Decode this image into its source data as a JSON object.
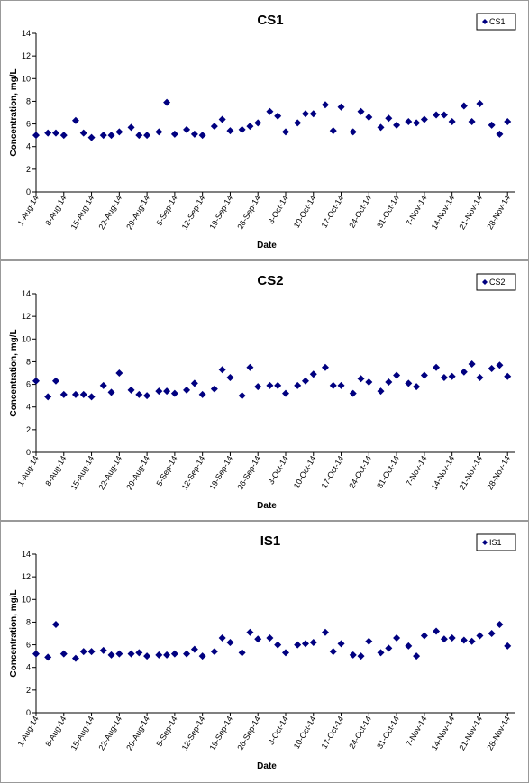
{
  "chart_data": [
    {
      "type": "scatter",
      "title": "CS1",
      "x_label": "Date",
      "y_label": "Concentration, mg/L",
      "legend": "upper right",
      "x": [
        "2014-08-01",
        "2014-08-04",
        "2014-08-06",
        "2014-08-08",
        "2014-08-11",
        "2014-08-13",
        "2014-08-15",
        "2014-08-18",
        "2014-08-20",
        "2014-08-22",
        "2014-08-25",
        "2014-08-27",
        "2014-08-29",
        "2014-09-01",
        "2014-09-03",
        "2014-09-05",
        "2014-09-08",
        "2014-09-10",
        "2014-09-12",
        "2014-09-15",
        "2014-09-17",
        "2014-09-19",
        "2014-09-22",
        "2014-09-24",
        "2014-09-26",
        "2014-09-29",
        "2014-10-01",
        "2014-10-03",
        "2014-10-06",
        "2014-10-08",
        "2014-10-10",
        "2014-10-13",
        "2014-10-15",
        "2014-10-17",
        "2014-10-20",
        "2014-10-22",
        "2014-10-24",
        "2014-10-27",
        "2014-10-29",
        "2014-10-31",
        "2014-11-03",
        "2014-11-05",
        "2014-11-07",
        "2014-11-10",
        "2014-11-12",
        "2014-11-14",
        "2014-11-17",
        "2014-11-19",
        "2014-11-21",
        "2014-11-24",
        "2014-11-26",
        "2014-11-28"
      ],
      "series": [
        {
          "name": "CS1",
          "color": "#000080",
          "values": [
            5.0,
            5.2,
            5.2,
            5.0,
            6.3,
            5.2,
            4.8,
            5.0,
            5.0,
            5.3,
            5.7,
            5.0,
            5.0,
            5.3,
            7.9,
            5.1,
            5.5,
            5.1,
            5.0,
            5.8,
            6.4,
            5.4,
            5.5,
            5.8,
            6.1,
            7.1,
            6.7,
            5.3,
            6.1,
            6.9,
            6.9,
            7.7,
            5.4,
            7.5,
            5.3,
            7.1,
            6.6,
            5.7,
            6.5,
            5.9,
            6.2,
            6.1,
            6.4,
            6.8,
            6.8,
            6.2,
            7.6,
            6.2,
            7.8,
            5.9,
            5.1,
            6.2
          ]
        }
      ],
      "xlim": [
        "2014-08-01",
        "2014-11-30"
      ],
      "xticks": [
        {
          "value": "2014-08-01",
          "label": "1-Aug-14"
        },
        {
          "value": "2014-08-08",
          "label": "8-Aug-14"
        },
        {
          "value": "2014-08-15",
          "label": "15-Aug-14"
        },
        {
          "value": "2014-08-22",
          "label": "22-Aug-14"
        },
        {
          "value": "2014-08-29",
          "label": "29-Aug-14"
        },
        {
          "value": "2014-09-05",
          "label": "5-Sep-14"
        },
        {
          "value": "2014-09-12",
          "label": "12-Sep-14"
        },
        {
          "value": "2014-09-19",
          "label": "19-Sep-14"
        },
        {
          "value": "2014-09-26",
          "label": "26-Sep-14"
        },
        {
          "value": "2014-10-03",
          "label": "3-Oct-14"
        },
        {
          "value": "2014-10-10",
          "label": "10-Oct-14"
        },
        {
          "value": "2014-10-17",
          "label": "17-Oct-14"
        },
        {
          "value": "2014-10-24",
          "label": "24-Oct-14"
        },
        {
          "value": "2014-10-31",
          "label": "31-Oct-14"
        },
        {
          "value": "2014-11-07",
          "label": "7-Nov-14"
        },
        {
          "value": "2014-11-14",
          "label": "14-Nov-14"
        },
        {
          "value": "2014-11-21",
          "label": "21-Nov-14"
        },
        {
          "value": "2014-11-28",
          "label": "28-Nov-14"
        }
      ],
      "ylim": [
        0,
        14
      ],
      "yticks": [
        0,
        2,
        4,
        6,
        8,
        10,
        12,
        14
      ],
      "grid": false
    },
    {
      "type": "scatter",
      "title": "CS2",
      "x_label": "Date",
      "y_label": "Concentration, mg/L",
      "legend": "upper right",
      "x": [
        "2014-08-01",
        "2014-08-04",
        "2014-08-06",
        "2014-08-08",
        "2014-08-11",
        "2014-08-13",
        "2014-08-15",
        "2014-08-18",
        "2014-08-20",
        "2014-08-22",
        "2014-08-25",
        "2014-08-27",
        "2014-08-29",
        "2014-09-01",
        "2014-09-03",
        "2014-09-05",
        "2014-09-08",
        "2014-09-10",
        "2014-09-12",
        "2014-09-15",
        "2014-09-17",
        "2014-09-19",
        "2014-09-22",
        "2014-09-24",
        "2014-09-26",
        "2014-09-29",
        "2014-10-01",
        "2014-10-03",
        "2014-10-06",
        "2014-10-08",
        "2014-10-10",
        "2014-10-13",
        "2014-10-15",
        "2014-10-17",
        "2014-10-20",
        "2014-10-22",
        "2014-10-24",
        "2014-10-27",
        "2014-10-29",
        "2014-10-31",
        "2014-11-03",
        "2014-11-05",
        "2014-11-07",
        "2014-11-10",
        "2014-11-12",
        "2014-11-14",
        "2014-11-17",
        "2014-11-19",
        "2014-11-21",
        "2014-11-24",
        "2014-11-26",
        "2014-11-28"
      ],
      "series": [
        {
          "name": "CS2",
          "color": "#000080",
          "values": [
            6.3,
            4.9,
            6.3,
            5.1,
            5.1,
            5.1,
            4.9,
            5.9,
            5.3,
            7.0,
            5.5,
            5.1,
            5.0,
            5.4,
            5.4,
            5.2,
            5.5,
            6.1,
            5.1,
            5.6,
            7.3,
            6.6,
            5.0,
            7.5,
            5.8,
            5.9,
            5.9,
            5.2,
            5.9,
            6.3,
            6.9,
            7.5,
            5.9,
            5.9,
            5.2,
            6.5,
            6.2,
            5.4,
            6.2,
            6.8,
            6.1,
            5.8,
            6.8,
            7.5,
            6.6,
            6.7,
            7.1,
            7.8,
            6.6,
            7.4,
            7.7,
            6.7
          ]
        }
      ],
      "xlim": [
        "2014-08-01",
        "2014-11-30"
      ],
      "xticks": [
        {
          "value": "2014-08-01",
          "label": "1-Aug-14"
        },
        {
          "value": "2014-08-08",
          "label": "8-Aug-14"
        },
        {
          "value": "2014-08-15",
          "label": "15-Aug-14"
        },
        {
          "value": "2014-08-22",
          "label": "22-Aug-14"
        },
        {
          "value": "2014-08-29",
          "label": "29-Aug-14"
        },
        {
          "value": "2014-09-05",
          "label": "5-Sep-14"
        },
        {
          "value": "2014-09-12",
          "label": "12-Sep-14"
        },
        {
          "value": "2014-09-19",
          "label": "19-Sep-14"
        },
        {
          "value": "2014-09-26",
          "label": "26-Sep-14"
        },
        {
          "value": "2014-10-03",
          "label": "3-Oct-14"
        },
        {
          "value": "2014-10-10",
          "label": "10-Oct-14"
        },
        {
          "value": "2014-10-17",
          "label": "17-Oct-14"
        },
        {
          "value": "2014-10-24",
          "label": "24-Oct-14"
        },
        {
          "value": "2014-10-31",
          "label": "31-Oct-14"
        },
        {
          "value": "2014-11-07",
          "label": "7-Nov-14"
        },
        {
          "value": "2014-11-14",
          "label": "14-Nov-14"
        },
        {
          "value": "2014-11-21",
          "label": "21-Nov-14"
        },
        {
          "value": "2014-11-28",
          "label": "28-Nov-14"
        }
      ],
      "ylim": [
        0,
        14
      ],
      "yticks": [
        0,
        2,
        4,
        6,
        8,
        10,
        12,
        14
      ],
      "grid": false
    },
    {
      "type": "scatter",
      "title": "IS1",
      "x_label": "Date",
      "y_label": "Concentration, mg/L",
      "legend": "upper right",
      "x": [
        "2014-08-01",
        "2014-08-04",
        "2014-08-06",
        "2014-08-08",
        "2014-08-11",
        "2014-08-13",
        "2014-08-15",
        "2014-08-18",
        "2014-08-20",
        "2014-08-22",
        "2014-08-25",
        "2014-08-27",
        "2014-08-29",
        "2014-09-01",
        "2014-09-03",
        "2014-09-05",
        "2014-09-08",
        "2014-09-10",
        "2014-09-12",
        "2014-09-15",
        "2014-09-17",
        "2014-09-19",
        "2014-09-22",
        "2014-09-24",
        "2014-09-26",
        "2014-09-29",
        "2014-10-01",
        "2014-10-03",
        "2014-10-06",
        "2014-10-08",
        "2014-10-10",
        "2014-10-13",
        "2014-10-15",
        "2014-10-17",
        "2014-10-20",
        "2014-10-22",
        "2014-10-24",
        "2014-10-27",
        "2014-10-29",
        "2014-10-31",
        "2014-11-03",
        "2014-11-05",
        "2014-11-07",
        "2014-11-10",
        "2014-11-12",
        "2014-11-14",
        "2014-11-17",
        "2014-11-19",
        "2014-11-21",
        "2014-11-24",
        "2014-11-26",
        "2014-11-28"
      ],
      "series": [
        {
          "name": "IS1",
          "color": "#000080",
          "values": [
            5.2,
            4.9,
            7.8,
            5.2,
            4.8,
            5.4,
            5.4,
            5.5,
            5.1,
            5.2,
            5.2,
            5.3,
            5.0,
            5.1,
            5.1,
            5.2,
            5.2,
            5.6,
            5.0,
            5.4,
            6.6,
            6.2,
            5.3,
            7.1,
            6.5,
            6.6,
            6.0,
            5.3,
            6.0,
            6.1,
            6.2,
            7.1,
            5.4,
            6.1,
            5.1,
            5.0,
            6.3,
            5.3,
            5.7,
            6.6,
            5.9,
            5.0,
            6.8,
            7.2,
            6.5,
            6.6,
            6.4,
            6.3,
            6.8,
            7.0,
            7.8,
            5.9
          ]
        }
      ],
      "xlim": [
        "2014-08-01",
        "2014-11-30"
      ],
      "xticks": [
        {
          "value": "2014-08-01",
          "label": "1-Aug-14"
        },
        {
          "value": "2014-08-08",
          "label": "8-Aug-14"
        },
        {
          "value": "2014-08-15",
          "label": "15-Aug-14"
        },
        {
          "value": "2014-08-22",
          "label": "22-Aug-14"
        },
        {
          "value": "2014-08-29",
          "label": "29-Aug-14"
        },
        {
          "value": "2014-09-05",
          "label": "5-Sep-14"
        },
        {
          "value": "2014-09-12",
          "label": "12-Sep-14"
        },
        {
          "value": "2014-09-19",
          "label": "19-Sep-14"
        },
        {
          "value": "2014-09-26",
          "label": "26-Sep-14"
        },
        {
          "value": "2014-10-03",
          "label": "3-Oct-14"
        },
        {
          "value": "2014-10-10",
          "label": "10-Oct-14"
        },
        {
          "value": "2014-10-17",
          "label": "17-Oct-14"
        },
        {
          "value": "2014-10-24",
          "label": "24-Oct-14"
        },
        {
          "value": "2014-10-31",
          "label": "31-Oct-14"
        },
        {
          "value": "2014-11-07",
          "label": "7-Nov-14"
        },
        {
          "value": "2014-11-14",
          "label": "14-Nov-14"
        },
        {
          "value": "2014-11-21",
          "label": "21-Nov-14"
        },
        {
          "value": "2014-11-28",
          "label": "28-Nov-14"
        }
      ],
      "ylim": [
        0,
        14
      ],
      "yticks": [
        0,
        2,
        4,
        6,
        8,
        10,
        12,
        14
      ],
      "grid": false
    }
  ]
}
